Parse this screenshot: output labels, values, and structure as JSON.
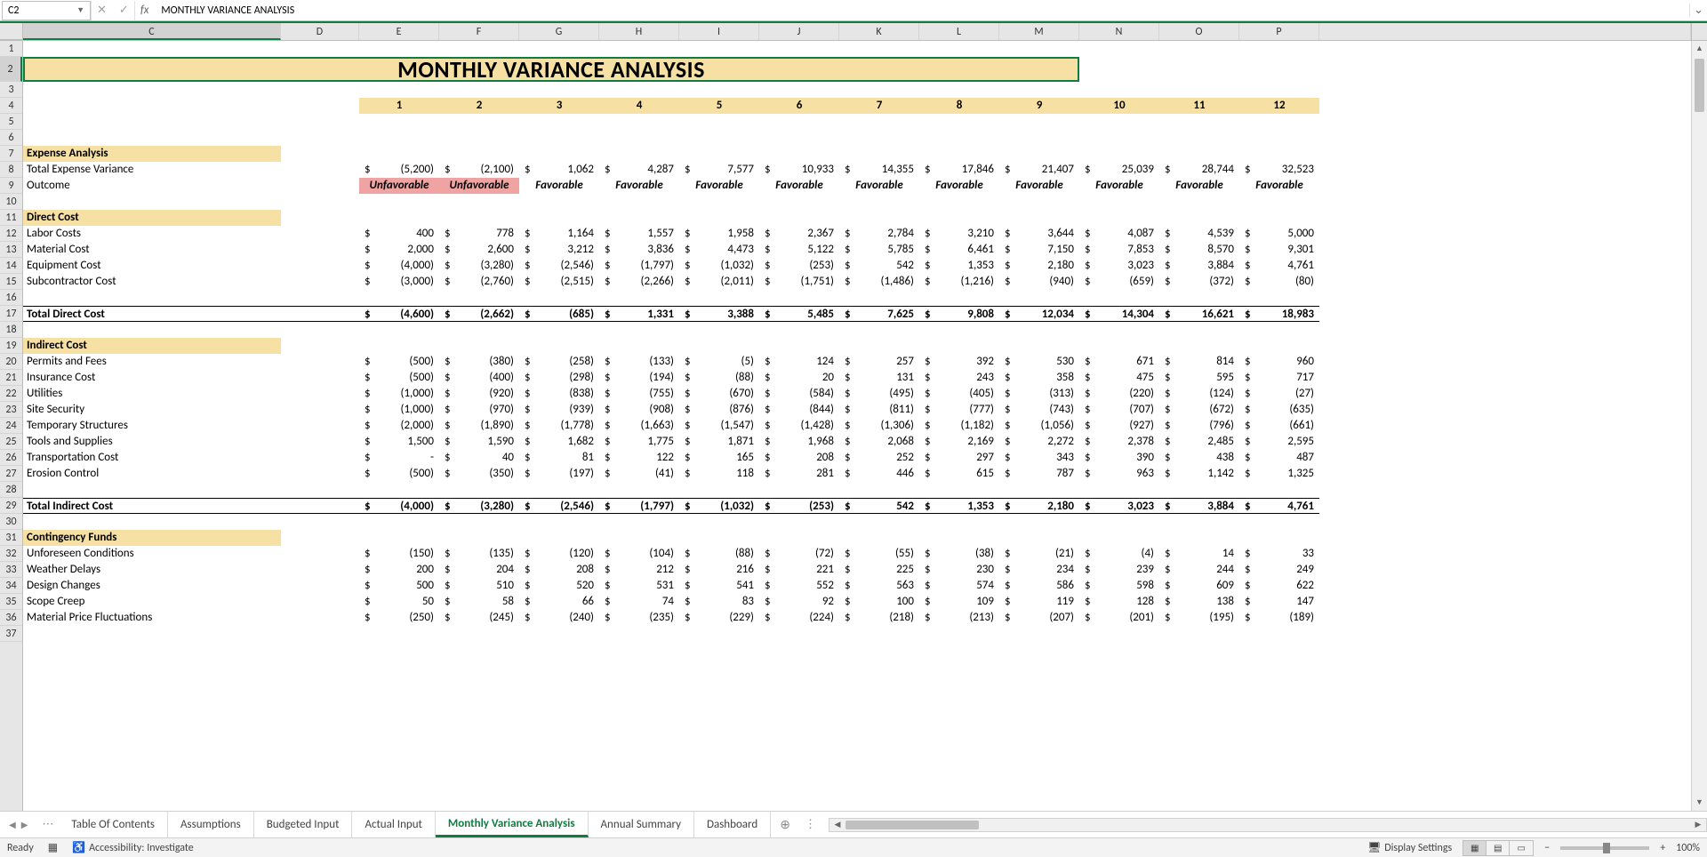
{
  "nameBox": "C2",
  "formula": "MONTHLY VARIANCE ANALYSIS",
  "title": "MONTHLY VARIANCE ANALYSIS",
  "columns": [
    "C",
    "D",
    "E",
    "F",
    "G",
    "H",
    "I",
    "J",
    "K",
    "L",
    "M",
    "N",
    "O",
    "P"
  ],
  "monthHeaders": [
    "1",
    "2",
    "3",
    "4",
    "5",
    "6",
    "7",
    "8",
    "9",
    "10",
    "11",
    "12"
  ],
  "rowNums": [
    1,
    2,
    3,
    4,
    5,
    6,
    7,
    8,
    9,
    10,
    11,
    12,
    13,
    14,
    15,
    16,
    17,
    18,
    19,
    20,
    21,
    22,
    23,
    24,
    25,
    26,
    27,
    28,
    29,
    30,
    31,
    32,
    33,
    34,
    35,
    36,
    37
  ],
  "sections": {
    "expenseAnalysis": "Expense Analysis",
    "directCost": "Direct Cost",
    "indirectCost": "Indirect Cost",
    "contingency": "Contingency Funds"
  },
  "rows": {
    "totalExpenseVariance": {
      "label": "Total Expense Variance",
      "vals": [
        "(5,200)",
        "(2,100)",
        "1,062",
        "4,287",
        "7,577",
        "10,933",
        "14,355",
        "17,846",
        "21,407",
        "25,039",
        "28,744",
        "32,523"
      ]
    },
    "outcome": {
      "label": "Outcome",
      "vals": [
        "Unfavorable",
        "Unfavorable",
        "Favorable",
        "Favorable",
        "Favorable",
        "Favorable",
        "Favorable",
        "Favorable",
        "Favorable",
        "Favorable",
        "Favorable",
        "Favorable"
      ]
    },
    "labor": {
      "label": "Labor Costs",
      "vals": [
        "400",
        "778",
        "1,164",
        "1,557",
        "1,958",
        "2,367",
        "2,784",
        "3,210",
        "3,644",
        "4,087",
        "4,539",
        "5,000"
      ]
    },
    "material": {
      "label": "Material Cost",
      "vals": [
        "2,000",
        "2,600",
        "3,212",
        "3,836",
        "4,473",
        "5,122",
        "5,785",
        "6,461",
        "7,150",
        "7,853",
        "8,570",
        "9,301"
      ]
    },
    "equipment": {
      "label": "Equipment Cost",
      "vals": [
        "(4,000)",
        "(3,280)",
        "(2,546)",
        "(1,797)",
        "(1,032)",
        "(253)",
        "542",
        "1,353",
        "2,180",
        "3,023",
        "3,884",
        "4,761"
      ]
    },
    "subcontractor": {
      "label": "Subcontractor Cost",
      "vals": [
        "(3,000)",
        "(2,760)",
        "(2,515)",
        "(2,266)",
        "(2,011)",
        "(1,751)",
        "(1,486)",
        "(1,216)",
        "(940)",
        "(659)",
        "(372)",
        "(80)"
      ]
    },
    "totalDirect": {
      "label": "Total Direct Cost",
      "vals": [
        "(4,600)",
        "(2,662)",
        "(685)",
        "1,331",
        "3,388",
        "5,485",
        "7,625",
        "9,808",
        "12,034",
        "14,304",
        "16,621",
        "18,983"
      ]
    },
    "permits": {
      "label": "Permits and Fees",
      "vals": [
        "(500)",
        "(380)",
        "(258)",
        "(133)",
        "(5)",
        "124",
        "257",
        "392",
        "530",
        "671",
        "814",
        "960"
      ]
    },
    "insurance": {
      "label": "Insurance Cost",
      "vals": [
        "(500)",
        "(400)",
        "(298)",
        "(194)",
        "(88)",
        "20",
        "131",
        "243",
        "358",
        "475",
        "595",
        "717"
      ]
    },
    "utilities": {
      "label": "Utilities",
      "vals": [
        "(1,000)",
        "(920)",
        "(838)",
        "(755)",
        "(670)",
        "(584)",
        "(495)",
        "(405)",
        "(313)",
        "(220)",
        "(124)",
        "(27)"
      ]
    },
    "siteSecurity": {
      "label": "Site Security",
      "vals": [
        "(1,000)",
        "(970)",
        "(939)",
        "(908)",
        "(876)",
        "(844)",
        "(811)",
        "(777)",
        "(743)",
        "(707)",
        "(672)",
        "(635)"
      ]
    },
    "tempStruct": {
      "label": "Temporary Structures",
      "vals": [
        "(2,000)",
        "(1,890)",
        "(1,778)",
        "(1,663)",
        "(1,547)",
        "(1,428)",
        "(1,306)",
        "(1,182)",
        "(1,056)",
        "(927)",
        "(796)",
        "(661)"
      ]
    },
    "tools": {
      "label": "Tools and Supplies",
      "vals": [
        "1,500",
        "1,590",
        "1,682",
        "1,775",
        "1,871",
        "1,968",
        "2,068",
        "2,169",
        "2,272",
        "2,378",
        "2,485",
        "2,595"
      ]
    },
    "transport": {
      "label": "Transportation Cost",
      "vals": [
        "-",
        "40",
        "81",
        "122",
        "165",
        "208",
        "252",
        "297",
        "343",
        "390",
        "438",
        "487"
      ]
    },
    "erosion": {
      "label": "Erosion Control",
      "vals": [
        "(500)",
        "(350)",
        "(197)",
        "(41)",
        "118",
        "281",
        "446",
        "615",
        "787",
        "963",
        "1,142",
        "1,325"
      ]
    },
    "totalIndirect": {
      "label": "Total Indirect Cost",
      "vals": [
        "(4,000)",
        "(3,280)",
        "(2,546)",
        "(1,797)",
        "(1,032)",
        "(253)",
        "542",
        "1,353",
        "2,180",
        "3,023",
        "3,884",
        "4,761"
      ]
    },
    "unforeseen": {
      "label": "Unforeseen Conditions",
      "vals": [
        "(150)",
        "(135)",
        "(120)",
        "(104)",
        "(88)",
        "(72)",
        "(55)",
        "(38)",
        "(21)",
        "(4)",
        "14",
        "33"
      ]
    },
    "weather": {
      "label": "Weather Delays",
      "vals": [
        "200",
        "204",
        "208",
        "212",
        "216",
        "221",
        "225",
        "230",
        "234",
        "239",
        "244",
        "249"
      ]
    },
    "design": {
      "label": "Design Changes",
      "vals": [
        "500",
        "510",
        "520",
        "531",
        "541",
        "552",
        "563",
        "574",
        "586",
        "598",
        "609",
        "622"
      ]
    },
    "scope": {
      "label": "Scope Creep",
      "vals": [
        "50",
        "58",
        "66",
        "74",
        "83",
        "92",
        "100",
        "109",
        "119",
        "128",
        "138",
        "147"
      ]
    },
    "matprice": {
      "label": "Material Price Fluctuations",
      "vals": [
        "(250)",
        "(245)",
        "(240)",
        "(235)",
        "(229)",
        "(224)",
        "(218)",
        "(213)",
        "(207)",
        "(201)",
        "(195)",
        "(189)"
      ]
    }
  },
  "tabs": [
    "Table Of Contents",
    "Assumptions",
    "Budgeted Input",
    "Actual Input",
    "Monthly Variance Analysis",
    "Annual Summary",
    "Dashboard"
  ],
  "activeTab": "Monthly Variance Analysis",
  "statusBar": {
    "ready": "Ready",
    "accessibility": "Accessibility: Investigate",
    "displaySettings": "Display Settings",
    "zoom": "100%"
  },
  "colors": {
    "yellowBg": "#f6e0a3",
    "unfavBg": "#f0a3a3",
    "excelGreen": "#107c41",
    "gridBorder": "#d4d4d4",
    "headerBg": "#e6e6e6"
  }
}
